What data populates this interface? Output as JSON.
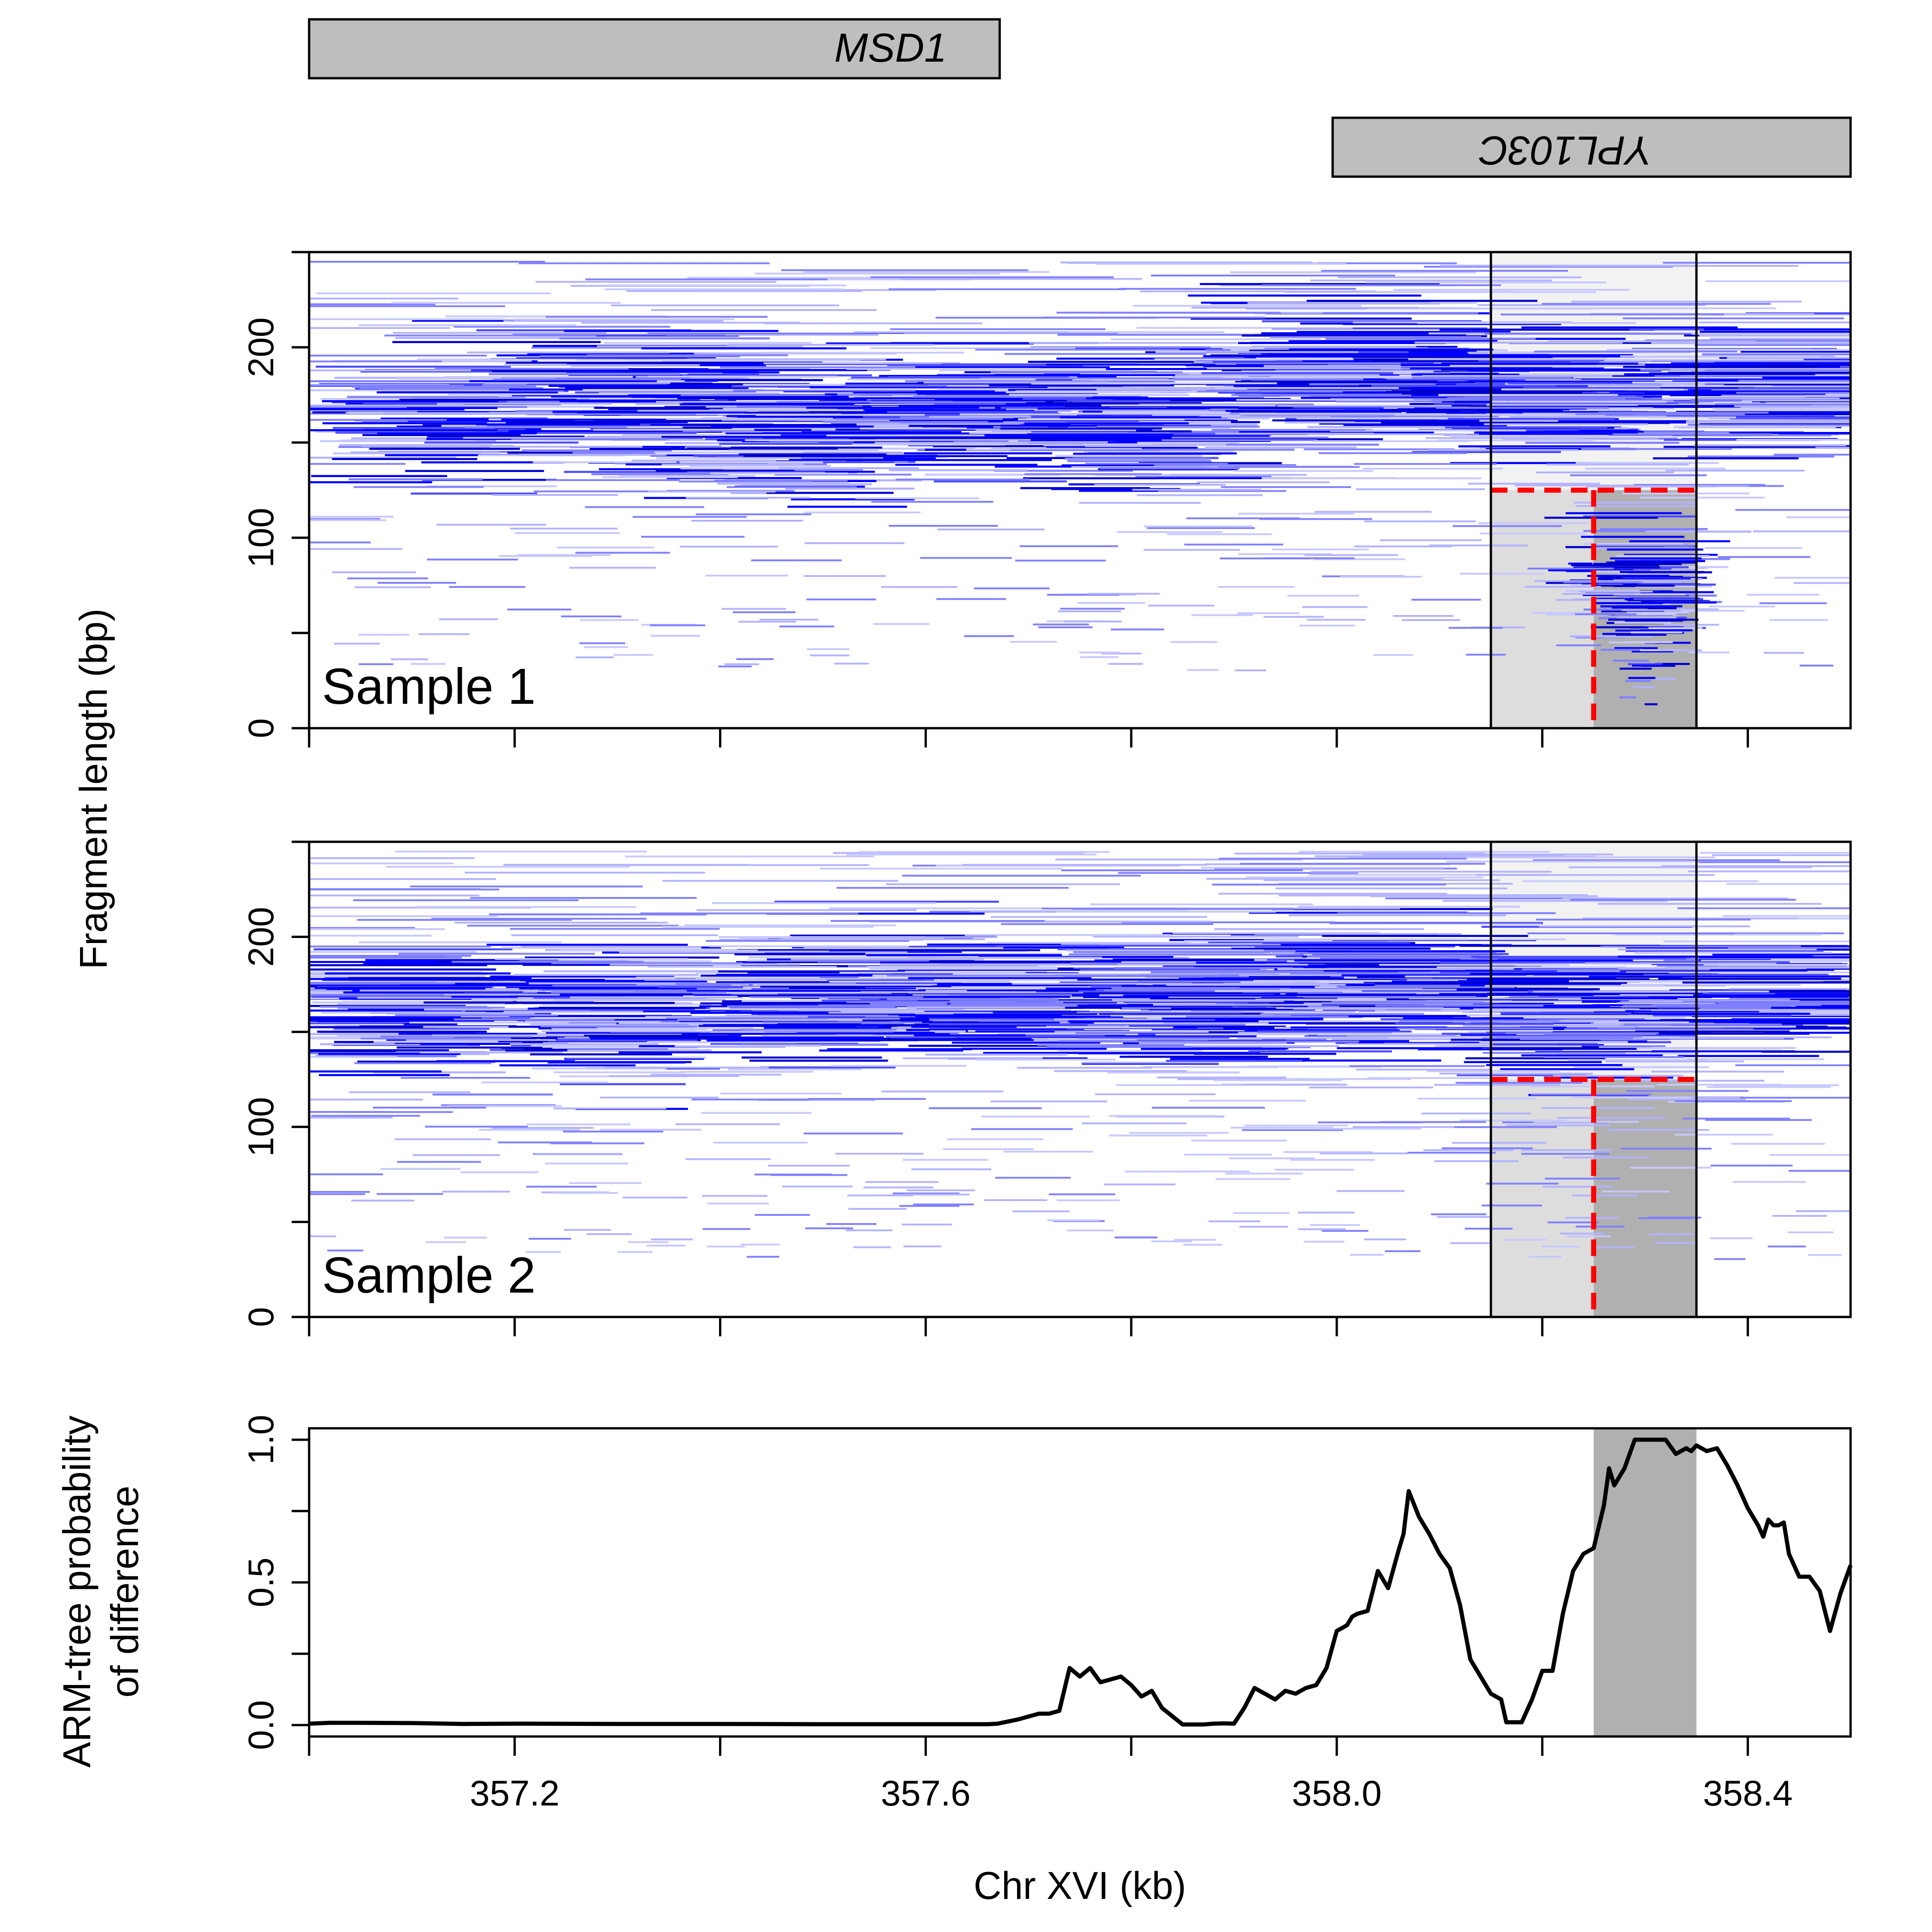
{
  "chart_data": [
    {
      "panel": "gene-track",
      "type": "other",
      "genes": [
        {
          "name": "MSD1",
          "start_kb": 357.0,
          "end_kb": 357.672,
          "strand": "+"
        },
        {
          "name": "YPL103C",
          "start_kb": 357.996,
          "end_kb": 358.5,
          "strand": "-"
        }
      ]
    },
    {
      "panel": "sample-1",
      "type": "scatter",
      "label": "Sample 1",
      "ylabel": "Fragment length (bp)",
      "xlim": [
        357.0,
        358.5
      ],
      "ylim": [
        0,
        250
      ],
      "yticks": [
        0,
        100,
        200
      ],
      "highlight_region_kb": [
        358.15,
        358.35
      ],
      "difference_region": {
        "x_kb": [
          358.25,
          358.35
        ],
        "max_length_bp": 125
      },
      "fragment_clusters": [
        {
          "center_kb": 357.12,
          "center_bp": 165,
          "n": 30
        },
        {
          "center_kb": 357.32,
          "center_bp": 172,
          "n": 35
        },
        {
          "center_kb": 357.48,
          "center_bp": 155,
          "n": 45
        },
        {
          "center_kb": 357.66,
          "center_bp": 165,
          "n": 40
        },
        {
          "center_kb": 357.81,
          "center_bp": 160,
          "n": 40
        },
        {
          "center_kb": 358.02,
          "center_bp": 188,
          "n": 60
        },
        {
          "center_kb": 358.21,
          "center_bp": 175,
          "n": 50
        },
        {
          "center_kb": 358.44,
          "center_bp": 178,
          "n": 55
        },
        {
          "center_kb": 358.3,
          "center_bp": 70,
          "n": 45
        }
      ]
    },
    {
      "panel": "sample-2",
      "type": "scatter",
      "label": "Sample 2",
      "ylabel": "Fragment length (bp)",
      "xlim": [
        357.0,
        358.5
      ],
      "ylim": [
        0,
        250
      ],
      "yticks": [
        0,
        100,
        200
      ],
      "highlight_region_kb": [
        358.15,
        358.35
      ],
      "difference_region": {
        "x_kb": [
          358.25,
          358.35
        ],
        "max_length_bp": 125
      },
      "fragment_clusters": [
        {
          "center_kb": 357.1,
          "center_bp": 160,
          "n": 35
        },
        {
          "center_kb": 357.3,
          "center_bp": 158,
          "n": 35
        },
        {
          "center_kb": 357.5,
          "center_bp": 168,
          "n": 45
        },
        {
          "center_kb": 357.68,
          "center_bp": 165,
          "n": 45
        },
        {
          "center_kb": 357.88,
          "center_bp": 165,
          "n": 45
        },
        {
          "center_kb": 358.04,
          "center_bp": 175,
          "n": 45
        },
        {
          "center_kb": 358.22,
          "center_bp": 160,
          "n": 35
        },
        {
          "center_kb": 358.42,
          "center_bp": 168,
          "n": 35
        }
      ]
    },
    {
      "panel": "arm-tree",
      "type": "line",
      "ylabel": [
        "ARM-tree probability",
        "of difference"
      ],
      "xlabel": "Chr XVI (kb)",
      "xlim": [
        357.0,
        358.5
      ],
      "ylim": [
        -0.04,
        1.04
      ],
      "yticks": [
        0.0,
        0.5,
        1.0
      ],
      "xticks": [
        357.2,
        357.6,
        358.0,
        358.4
      ],
      "highlight_region_kb": [
        358.25,
        358.35
      ],
      "x": [
        357.0,
        357.02,
        357.05,
        357.1,
        357.15,
        357.2,
        357.3,
        357.4,
        357.5,
        357.6,
        357.66,
        357.67,
        357.69,
        357.71,
        357.72,
        357.73,
        357.74,
        357.75,
        357.76,
        357.77,
        357.78,
        357.79,
        357.8,
        357.81,
        357.82,
        357.83,
        357.85,
        357.87,
        357.88,
        357.89,
        357.9,
        357.91,
        357.92,
        357.93,
        357.94,
        357.95,
        357.96,
        357.97,
        357.98,
        357.99,
        358.0,
        358.01,
        358.015,
        358.02,
        358.03,
        358.035,
        358.04,
        358.05,
        358.06,
        358.065,
        358.07,
        358.08,
        358.09,
        358.1,
        358.11,
        358.12,
        358.13,
        358.14,
        358.15,
        358.16,
        358.165,
        358.17,
        358.18,
        358.19,
        358.2,
        358.21,
        358.22,
        358.23,
        358.24,
        358.25,
        358.26,
        358.265,
        358.27,
        358.28,
        358.285,
        358.29,
        358.3,
        358.31,
        358.32,
        358.33,
        358.335,
        358.34,
        358.345,
        358.35,
        358.36,
        358.37,
        358.38,
        358.39,
        358.4,
        358.41,
        358.415,
        358.42,
        358.425,
        358.43,
        358.435,
        358.44,
        358.45,
        358.46,
        358.47,
        358.48,
        358.49,
        358.5
      ],
      "y": [
        0.005,
        0.008,
        0.008,
        0.007,
        0.004,
        0.005,
        0.004,
        0.004,
        0.003,
        0.003,
        0.003,
        0.005,
        0.02,
        0.04,
        0.04,
        0.05,
        0.2,
        0.17,
        0.2,
        0.15,
        0.16,
        0.17,
        0.14,
        0.1,
        0.12,
        0.06,
        0.002,
        0.002,
        0.005,
        0.006,
        0.005,
        0.06,
        0.13,
        0.11,
        0.09,
        0.12,
        0.11,
        0.13,
        0.14,
        0.2,
        0.33,
        0.35,
        0.38,
        0.39,
        0.4,
        0.47,
        0.54,
        0.48,
        0.61,
        0.67,
        0.82,
        0.73,
        0.67,
        0.6,
        0.55,
        0.42,
        0.23,
        0.17,
        0.11,
        0.09,
        0.01,
        0.01,
        0.01,
        0.09,
        0.19,
        0.19,
        0.39,
        0.54,
        0.6,
        0.62,
        0.77,
        0.9,
        0.84,
        0.9,
        0.95,
        1.0,
        1.0,
        1.0,
        1.0,
        0.95,
        0.96,
        0.97,
        0.96,
        0.98,
        0.96,
        0.97,
        0.91,
        0.84,
        0.76,
        0.7,
        0.66,
        0.72,
        0.7,
        0.7,
        0.71,
        0.6,
        0.52,
        0.52,
        0.47,
        0.33,
        0.46,
        0.56
      ]
    }
  ],
  "style": {
    "fragment_colors": [
      "#0000ff",
      "#4d4dff",
      "#8080ff",
      "#b3b3ff",
      "#c8c8ff",
      "#0000cc"
    ],
    "difference_line_color": "#ff0000",
    "highlight_light": "#f2f2f2",
    "highlight_mid": "#dddddd",
    "highlight_dark": "#b0b0b0",
    "gene_fill": "#bebebe",
    "curve_color": "#000000"
  }
}
